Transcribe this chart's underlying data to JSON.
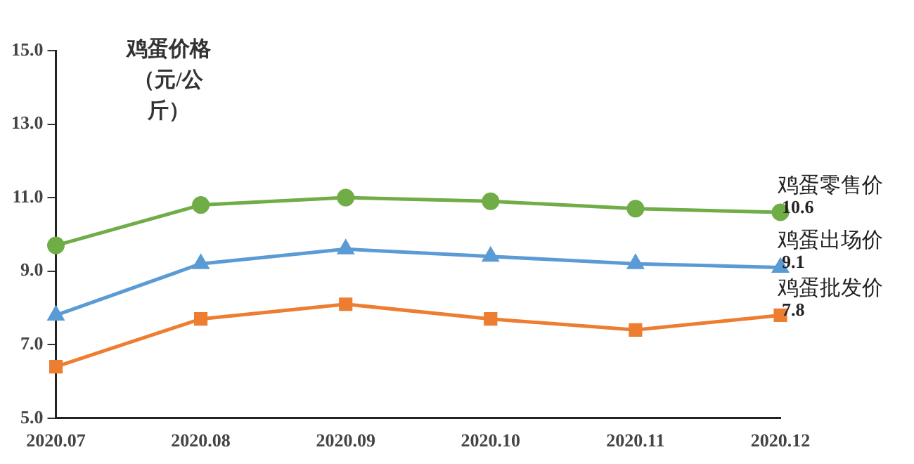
{
  "chart_data": {
    "type": "line",
    "ylabel": "鸡蛋价格（元/公斤）",
    "categories": [
      "2020.07",
      "2020.08",
      "2020.09",
      "2020.10",
      "2020.11",
      "2020.12"
    ],
    "series": [
      {
        "name": "鸡蛋零售价",
        "color": "#70ad47",
        "marker": "circle",
        "values": [
          9.7,
          10.8,
          11.0,
          10.9,
          10.7,
          10.6
        ],
        "value_labels": [
          null,
          null,
          null,
          null,
          null,
          "10.6"
        ]
      },
      {
        "name": "鸡蛋出场价",
        "color": "#5b9bd5",
        "marker": "triangle",
        "values": [
          7.8,
          9.2,
          9.6,
          9.4,
          9.2,
          9.1
        ],
        "value_labels": [
          null,
          null,
          null,
          null,
          null,
          "9.1"
        ]
      },
      {
        "name": "鸡蛋批发价",
        "color": "#ed7d31",
        "marker": "square",
        "values": [
          6.4,
          7.7,
          8.1,
          7.7,
          7.4,
          7.8
        ],
        "value_labels": [
          null,
          null,
          null,
          null,
          null,
          "7.8"
        ]
      }
    ],
    "ylim": [
      5,
      15
    ],
    "yticks": [
      {
        "value": 5,
        "label": "5.0"
      },
      {
        "value": 7,
        "label": "7.0"
      },
      {
        "value": 9,
        "label": "9.0"
      },
      {
        "value": 11,
        "label": "11.0"
      },
      {
        "value": 13,
        "label": "13.0"
      },
      {
        "value": 15,
        "label": "15.0"
      }
    ],
    "grid": false,
    "legend": false
  }
}
